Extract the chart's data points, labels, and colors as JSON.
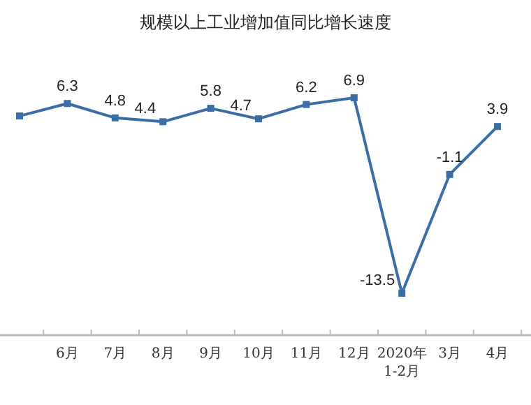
{
  "chart_data": {
    "type": "line",
    "title": "规模以上工业增加值同比增长速度",
    "categories": [
      null,
      "6月",
      "7月",
      "8月",
      "9月",
      "10月",
      "11月",
      "12月",
      "2020年\n1-2月",
      "3月",
      "4月"
    ],
    "series": [
      {
        "color": "#3a6ea5",
        "values": [
          5.0,
          6.3,
          4.8,
          4.4,
          5.8,
          4.7,
          6.2,
          6.9,
          -13.5,
          -1.1,
          3.9
        ],
        "value_labels": [
          null,
          "6.3",
          "4.8",
          "4.4",
          "5.8",
          "4.7",
          "6.2",
          "6.9",
          "-13.5",
          "-1.1",
          "3.9"
        ]
      }
    ],
    "marker": "square"
  }
}
